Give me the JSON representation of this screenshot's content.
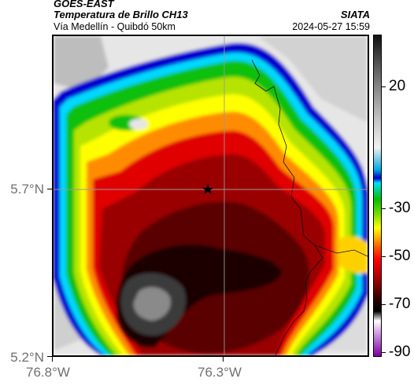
{
  "header": {
    "source": "GOES-EAST",
    "product": "Temperatura de Brillo CH13",
    "region": "Vía Medellín - Quibdó 50km",
    "organization": "SIATA",
    "timestamp": "2024-05-27 15:59"
  },
  "map": {
    "lat_labels": [
      "5.7°N",
      "5.2°N"
    ],
    "lon_labels": [
      "76.8°W",
      "76.3°W"
    ],
    "marker_icon": "star-icon",
    "colors": {
      "cold_core": "#222222",
      "deep_red": "#7a0000",
      "red": "#d40000",
      "orange": "#ff7a00",
      "yellow": "#ffff00",
      "green": "#00c000",
      "blue": "#0000d0",
      "clear_sky": "#e8e8e8"
    }
  },
  "colorbar": {
    "tick_labels": [
      "20",
      "-30",
      "-50",
      "-70",
      "-90"
    ]
  }
}
